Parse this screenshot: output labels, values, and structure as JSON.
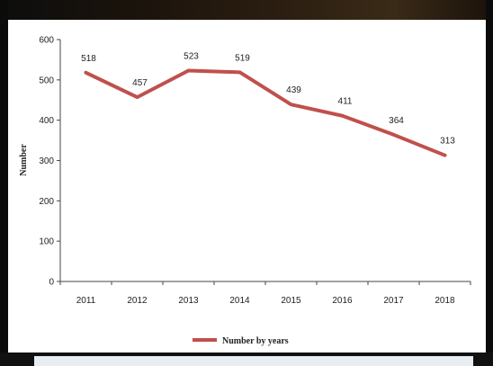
{
  "chart_data": {
    "type": "line",
    "title": "",
    "xlabel": "",
    "ylabel": "Number",
    "categories": [
      "2011",
      "2012",
      "2013",
      "2014",
      "2015",
      "2016",
      "2017",
      "2018"
    ],
    "series": [
      {
        "name": "Number by years",
        "color": "#c0504d",
        "values": [
          518,
          457,
          523,
          519,
          439,
          411,
          364,
          313
        ]
      }
    ],
    "ylim": [
      0,
      600
    ],
    "yticks": [
      "0",
      "100",
      "200",
      "300",
      "400",
      "500",
      "600"
    ],
    "grid": false,
    "legend_position": "bottom"
  }
}
